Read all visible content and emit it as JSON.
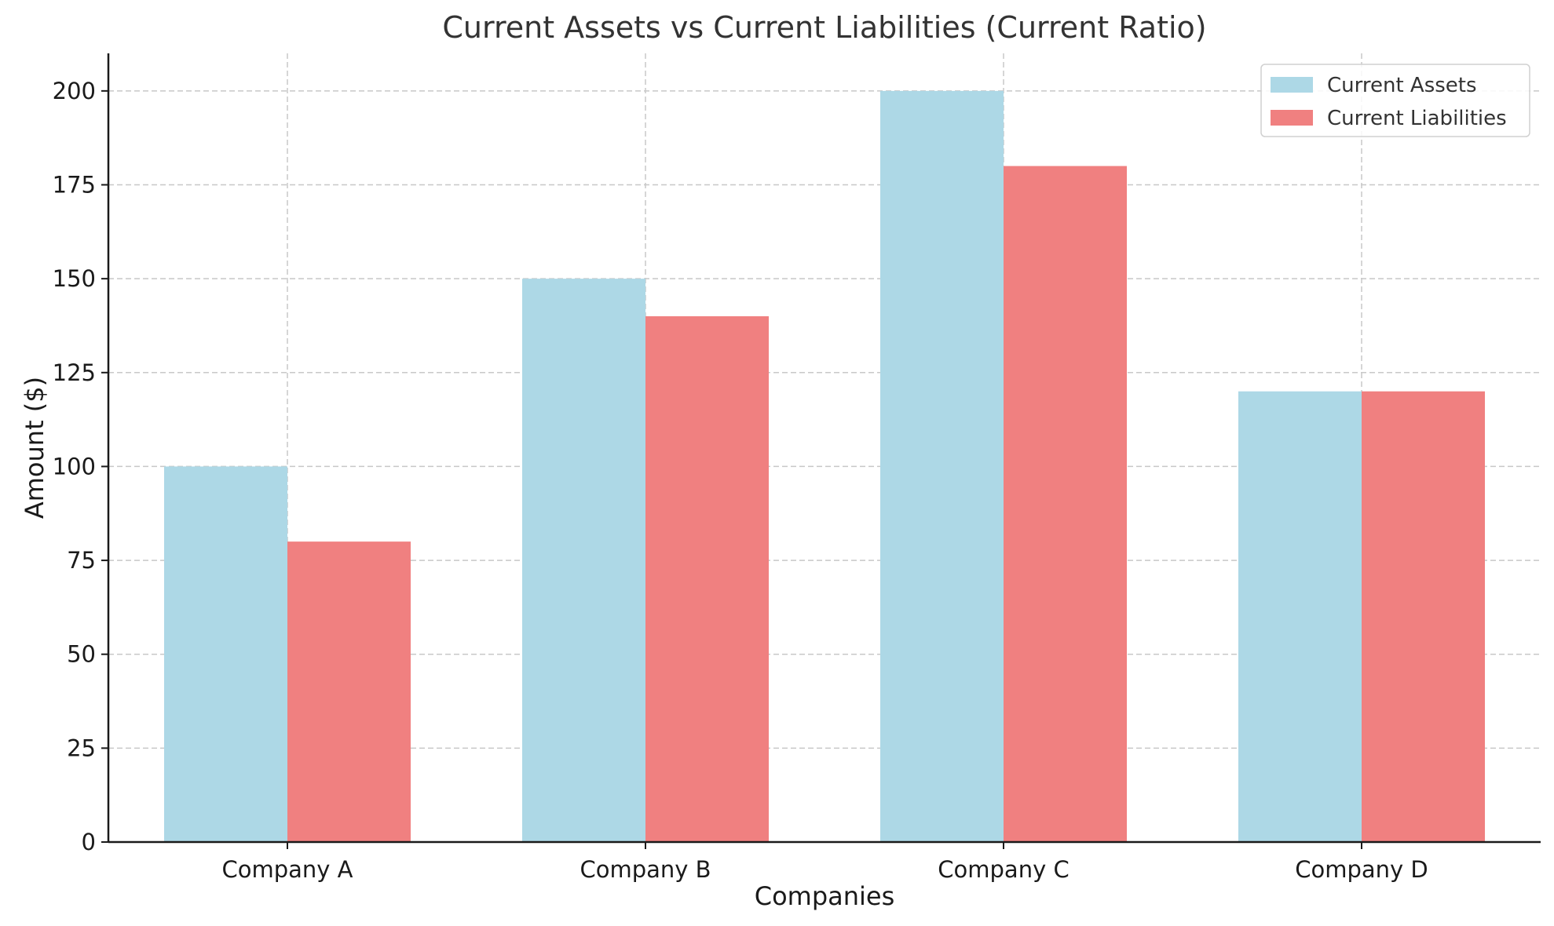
{
  "chart_data": {
    "type": "bar",
    "title": "Current Assets vs Current Liabilities (Current Ratio)",
    "xlabel": "Companies",
    "ylabel": "Amount ($)",
    "categories": [
      "Company A",
      "Company B",
      "Company C",
      "Company D"
    ],
    "series": [
      {
        "name": "Current Assets",
        "values": [
          100,
          150,
          200,
          120
        ],
        "color": "#add8e6"
      },
      {
        "name": "Current Liabilities",
        "values": [
          80,
          140,
          180,
          120
        ],
        "color": "#f08080"
      }
    ],
    "ylim": [
      0,
      210
    ],
    "yticks": [
      0,
      25,
      50,
      75,
      100,
      125,
      150,
      175,
      200
    ],
    "grid": true,
    "legend_position": "top-right"
  }
}
